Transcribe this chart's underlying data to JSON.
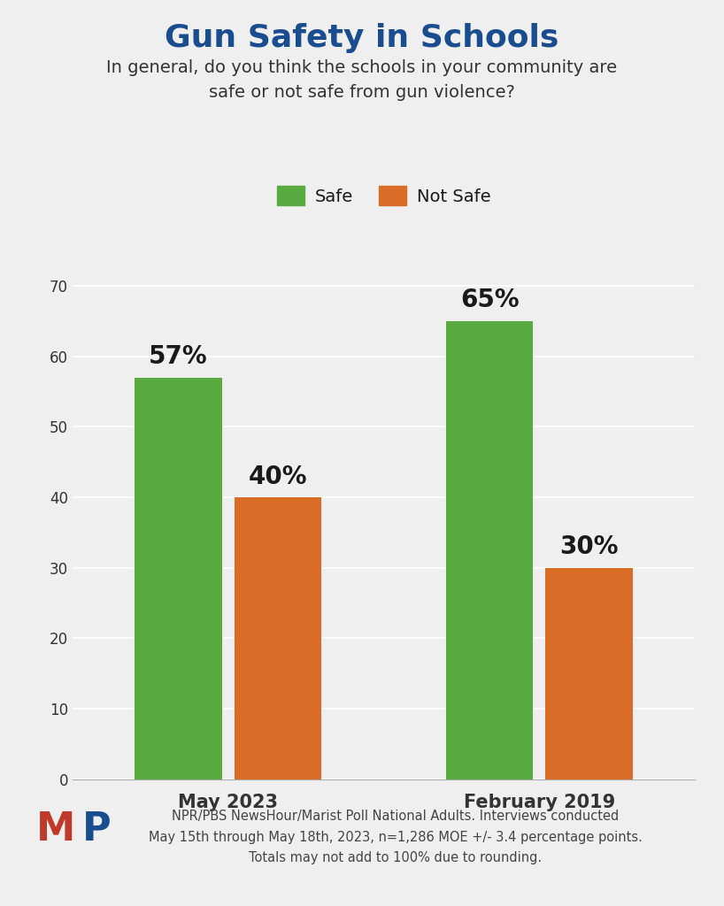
{
  "title": "Gun Safety in Schools",
  "subtitle": "In general, do you think the schools in your community are\nsafe or not safe from gun violence?",
  "groups": [
    "May 2023",
    "February 2019"
  ],
  "safe_values": [
    57,
    65
  ],
  "not_safe_values": [
    40,
    30
  ],
  "safe_color": "#5aab3f",
  "not_safe_color": "#d96d27",
  "title_color": "#1a4d8f",
  "subtitle_color": "#333333",
  "label_color": "#1a1a1a",
  "axis_label_color": "#333333",
  "background_color": "#efefef",
  "ylim": [
    0,
    72
  ],
  "yticks": [
    0,
    10,
    20,
    30,
    40,
    50,
    60,
    70
  ],
  "bar_width": 0.28,
  "legend_labels": [
    "Safe",
    "Not Safe"
  ],
  "footnote_line1": "NPR/PBS NewsHour/Marist Poll National Adults. Interviews conducted",
  "footnote_line2": "May 15th through May 18th, 2023, n=1,286 MOE +/- 3.4 percentage points.",
  "footnote_line3": "Totals may not add to 100% due to rounding.",
  "mp_M_color": "#c0392b",
  "mp_P_color": "#1a4d8f",
  "title_fontsize": 26,
  "subtitle_fontsize": 14,
  "bar_label_fontsize": 20,
  "xtick_fontsize": 15,
  "ytick_fontsize": 12,
  "legend_fontsize": 14,
  "footnote_fontsize": 10.5
}
